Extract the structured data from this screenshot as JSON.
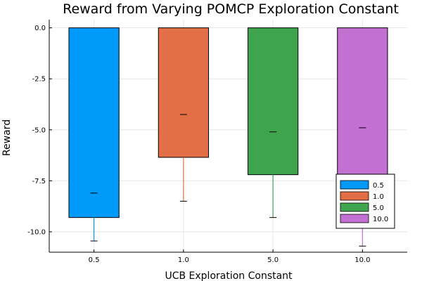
{
  "chart_data": {
    "type": "bar",
    "title": "Reward from Varying POMCP Exploration Constant",
    "xlabel": "UCB Exploration Constant",
    "ylabel": "Reward",
    "categories": [
      "0.5",
      "1.0",
      "5.0",
      "10.0"
    ],
    "bar_bottoms": [
      -9.3,
      -6.35,
      -7.2,
      -9.0
    ],
    "ylim": [
      -11.0,
      0.4
    ],
    "yticks": [
      0.0,
      -2.5,
      -5.0,
      -7.5,
      -10.0
    ],
    "ytick_labels": [
      "0.0",
      "-2.5",
      "-5.0",
      "-7.5",
      "-10.0"
    ],
    "markers": [
      {
        "category": "0.5",
        "mean": -8.1,
        "low": -10.45,
        "high": -9.3
      },
      {
        "category": "1.0",
        "mean": -4.25,
        "low": -8.5,
        "high": -6.35
      },
      {
        "category": "5.0",
        "mean": -5.1,
        "low": -9.3,
        "high": -7.2
      },
      {
        "category": "10.0",
        "mean": -4.9,
        "low": -10.7,
        "high": -9.0
      }
    ],
    "colors": [
      "#009AFA",
      "#E26F46",
      "#3EA44E",
      "#C271D2"
    ],
    "legend": {
      "placement": "bottom-right",
      "entries": [
        "0.5",
        "1.0",
        "5.0",
        "10.0"
      ]
    },
    "grid": true
  }
}
